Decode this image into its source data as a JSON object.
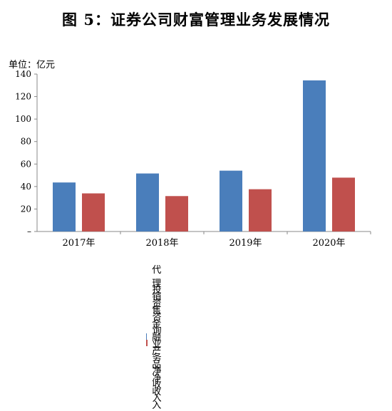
{
  "title": "图 5：证券公司财富管理业务发展情况",
  "unit_label": "单位：亿元",
  "chart_data": {
    "type": "bar",
    "categories": [
      "2017年",
      "2018年",
      "2019年",
      "2020年"
    ],
    "series": [
      {
        "name": "代理销售金融产品净收入",
        "color": "#4a7ebb",
        "values": [
          43.6,
          51.6,
          54.1,
          134.4
        ]
      },
      {
        "name": "投资咨询业务净收入",
        "color": "#c0504d",
        "values": [
          33.9,
          31.5,
          37.6,
          47.9
        ]
      }
    ],
    "ylim": [
      0,
      140
    ],
    "yticks": [
      0,
      20,
      40,
      60,
      80,
      100,
      120,
      140
    ],
    "yticklabels": [
      "–",
      "20",
      "40",
      "60",
      "80",
      "100",
      "120",
      "140"
    ],
    "grid": false,
    "legend_position": "bottom"
  }
}
